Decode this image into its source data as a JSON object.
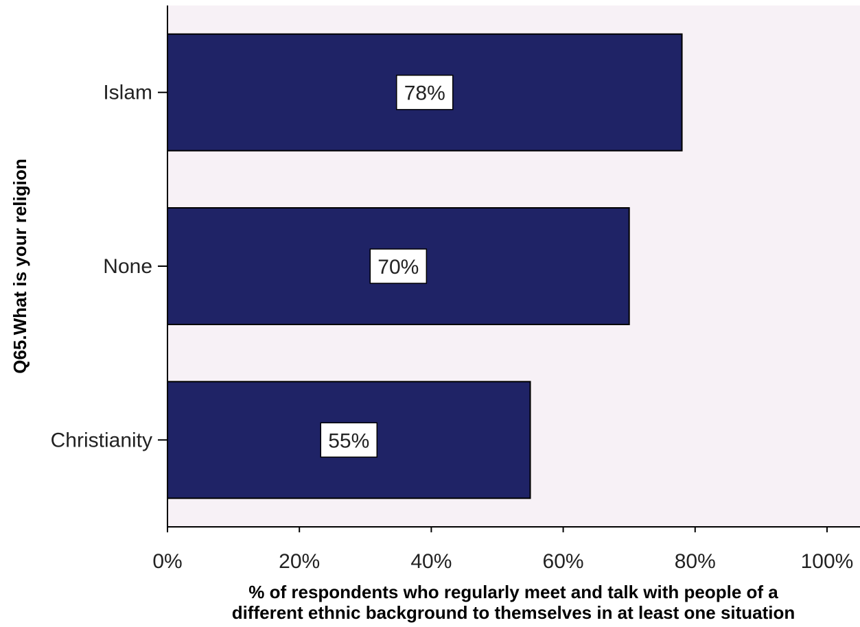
{
  "chart_data": {
    "type": "bar",
    "orientation": "horizontal",
    "categories": [
      "Islam",
      "None",
      "Christianity"
    ],
    "values": [
      78,
      70,
      55
    ],
    "data_labels": [
      "78%",
      "70%",
      "55%"
    ],
    "title": "",
    "xlabel_lines": [
      "% of respondents who regularly meet and talk with people of a",
      "different ethnic background to themselves in at least one situation"
    ],
    "ylabel": "Q65.What is your religion",
    "xlim": [
      0,
      105
    ],
    "x_ticks": [
      0,
      20,
      40,
      60,
      80,
      100
    ],
    "x_tick_labels": [
      "0%",
      "20%",
      "40%",
      "60%",
      "80%",
      "100%"
    ],
    "grid": false,
    "legend": "none",
    "colors": {
      "bar": "#1f2366",
      "bar_edge": "#000000",
      "plot_background": "#f7f1f6",
      "label_box": "#ffffff"
    }
  }
}
